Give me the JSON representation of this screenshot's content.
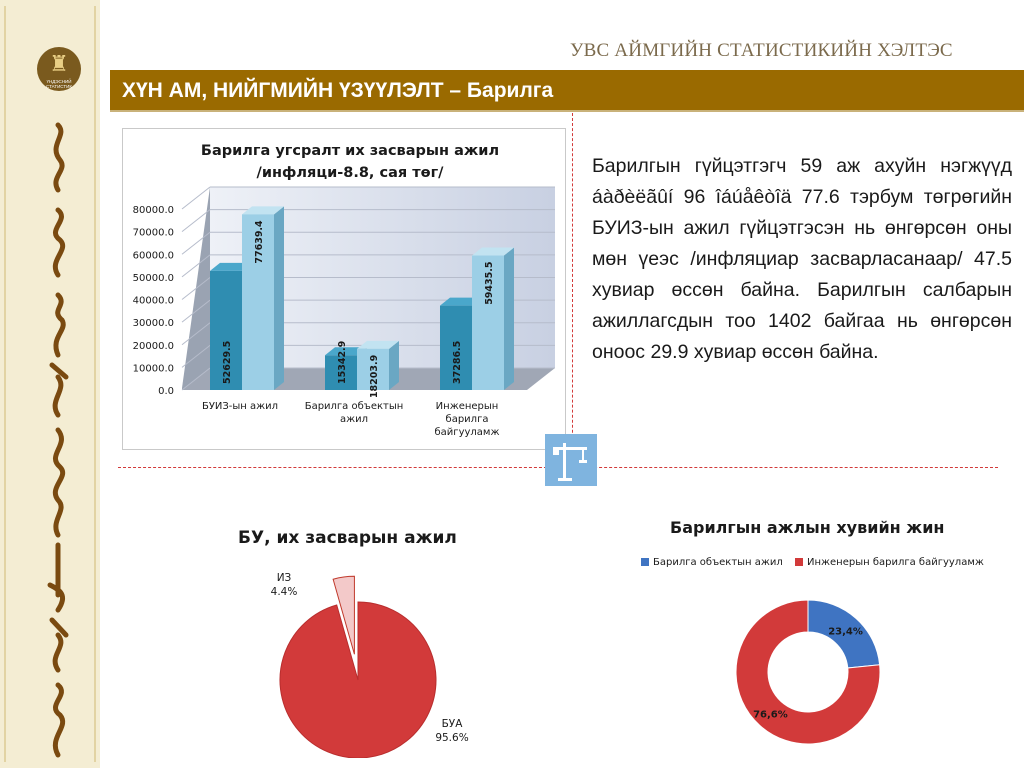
{
  "header": {
    "org_title": "УВС АЙМГИЙН СТАТИСТИКИЙН ХЭЛТЭС",
    "page_title": "ХҮН АМ, НИЙГМИЙН ҮЗҮҮЛЭЛТ – Барилга"
  },
  "sidebar": {
    "emblem_text": "ҮНДЭСНИЙ СТАТИСТИК"
  },
  "summary_text": "Барилгын гүйцэтгэгч 59 аж ахуйн нэгжүүд áàðèëãûí 96 îáúåêòîä  77.6 тэрбум төгрөгийн БУИЗ-ын ажил гүйцэтгэсэн нь өнгөрсөн оны мөн үеэс /инфляциар засварласанаар/ 47.5 хувиар өссөн байна. Барилгын салбарын ажиллагсдын тоо 1402 байгаа нь өнгөрсөн оноос 29.9 хувиар өссөн байна.",
  "colors": {
    "title_bar": "#9a6a00",
    "bar_dark": "#2f8db1",
    "bar_light": "#9ccfe6",
    "pie_red": "#d23a3a",
    "pie_blue": "#3f74c2",
    "dashed_rule": "#d23a3a"
  },
  "icons": [
    "emblem-icon",
    "crane-icon"
  ],
  "chart_data": [
    {
      "type": "bar",
      "title_line1": "Барилга угсралт их засварын ажил",
      "title_line2": "/инфляци-8.8, сая төг/",
      "categories": [
        "БУИЗ-ын ажил",
        "Барилга объектын ажил",
        "Инженерын барилга байгууламж"
      ],
      "series": [
        {
          "values": [
            52629.5,
            15342.9,
            37286.5
          ]
        },
        {
          "values": [
            77639.4,
            18203.9,
            59435.5
          ]
        }
      ],
      "value_labels": [
        [
          "52629.5",
          "15342.9",
          "37286.5"
        ],
        [
          "77639.4",
          "18203.9",
          "59435.5"
        ]
      ],
      "ylim": [
        0,
        80000
      ],
      "yticks": [
        "0.0",
        "10000.0",
        "20000.0",
        "30000.0",
        "40000.0",
        "50000.0",
        "60000.0",
        "70000.0",
        "80000.0"
      ],
      "grid": true,
      "style": "3d"
    },
    {
      "type": "pie",
      "title": "БУ, их засварын ажил",
      "slices": [
        {
          "name": "ИЗ",
          "value": 4.4,
          "label": "4.4%",
          "exploded": true
        },
        {
          "name": "БУА",
          "value": 95.6,
          "label": "95.6%"
        }
      ]
    },
    {
      "type": "pie",
      "subtype": "doughnut",
      "title": "Барилгын ажлын хувийн жин",
      "legend_position": "top",
      "series_labels": [
        "Барилга объектын ажил",
        "Инженерын барилга байгууламж"
      ],
      "slices": [
        {
          "name": "Барилга объектын ажил",
          "value": 23.4,
          "label": "23,4%"
        },
        {
          "name": "Инженерын барилга байгууламж",
          "value": 76.6,
          "label": "76,6%"
        }
      ]
    }
  ]
}
